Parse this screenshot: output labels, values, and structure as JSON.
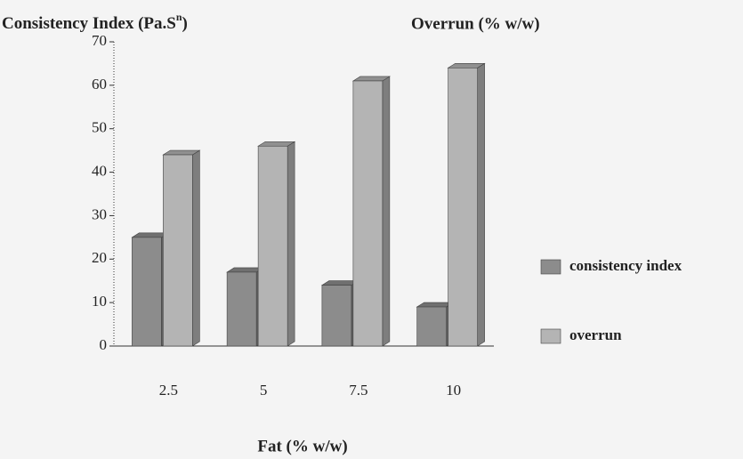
{
  "chart_data": {
    "type": "bar3d",
    "ylabel": [
      "Consistency Index (Pa.S",
      "n",
      ")"
    ],
    "y2label": "Overrun (% w/w)",
    "xlabel": "Fat (% w/w)",
    "categories": [
      "2.5",
      "5",
      "7.5",
      "10"
    ],
    "series": [
      {
        "name": "consistency index",
        "color": "#8c8c8c",
        "values": [
          25,
          17,
          14,
          9
        ]
      },
      {
        "name": "overrun",
        "color": "#b4b4b4",
        "values": [
          44,
          46,
          61,
          64
        ]
      }
    ],
    "ylim": [
      0,
      70
    ],
    "yticks": [
      0,
      10,
      20,
      30,
      40,
      50,
      60,
      70
    ],
    "grid": false,
    "legend": "right"
  }
}
